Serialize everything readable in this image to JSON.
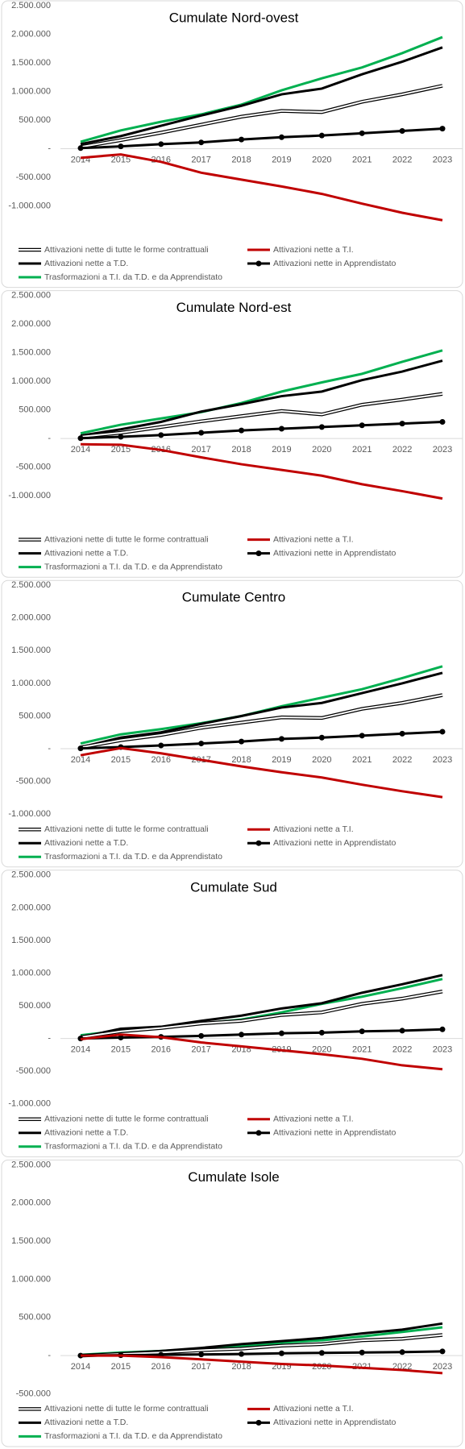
{
  "chart_data": [
    {
      "type": "line",
      "title": "Cumulate Nord-ovest",
      "categories": [
        "2014",
        "2015",
        "2016",
        "2017",
        "2018",
        "2019",
        "2020",
        "2021",
        "2022",
        "2023"
      ],
      "ylim": [
        -1500000,
        2500000
      ],
      "yticks": [
        {
          "value": 2500000,
          "label": "2.500.000"
        },
        {
          "value": 2000000,
          "label": "2.000.000"
        },
        {
          "value": 1500000,
          "label": "1.500.000"
        },
        {
          "value": 1000000,
          "label": "1.000.000"
        },
        {
          "value": 500000,
          "label": "500.000"
        },
        {
          "value": 0,
          "label": "-"
        },
        {
          "value": -500000,
          "label": "-500.000"
        },
        {
          "value": -1000000,
          "label": "-1.000.000"
        }
      ],
      "series": [
        {
          "name": "Attivazioni nette di tutte le forme contrattuali",
          "color": "#ffffff",
          "outline": true,
          "values": [
            30000,
            150000,
            280000,
            420000,
            560000,
            660000,
            640000,
            820000,
            950000,
            1100000
          ]
        },
        {
          "name": "Attivazioni nette a T.I.",
          "color": "#c00000",
          "values": [
            -160000,
            -100000,
            -230000,
            -420000,
            -540000,
            -660000,
            -790000,
            -960000,
            -1120000,
            -1250000
          ]
        },
        {
          "name": "Attivazioni nette a T.D.",
          "color": "#000000",
          "values": [
            80000,
            220000,
            400000,
            580000,
            750000,
            950000,
            1050000,
            1300000,
            1520000,
            1770000
          ]
        },
        {
          "name": "Attivazioni nette in Apprendistato",
          "color": "#000000",
          "markers": true,
          "values": [
            10000,
            40000,
            80000,
            110000,
            160000,
            200000,
            230000,
            270000,
            310000,
            350000
          ]
        },
        {
          "name": "Trasformazioni a T.I. da T.D. e da Apprendistato",
          "color": "#00b050",
          "values": [
            120000,
            320000,
            470000,
            600000,
            770000,
            1020000,
            1230000,
            1420000,
            1670000,
            1950000
          ]
        }
      ]
    },
    {
      "type": "line",
      "title": "Cumulate Nord-est",
      "categories": [
        "2014",
        "2015",
        "2016",
        "2017",
        "2018",
        "2019",
        "2020",
        "2021",
        "2022",
        "2023"
      ],
      "ylim": [
        -1500000,
        2500000
      ],
      "yticks": [
        {
          "value": 2500000,
          "label": "2.500.000"
        },
        {
          "value": 2000000,
          "label": "2.000.000"
        },
        {
          "value": 1500000,
          "label": "1.500.000"
        },
        {
          "value": 1000000,
          "label": "1.000.000"
        },
        {
          "value": 500000,
          "label": "500.000"
        },
        {
          "value": 0,
          "label": "-"
        },
        {
          "value": -500000,
          "label": "-500.000"
        },
        {
          "value": -1000000,
          "label": "-1.000.000"
        }
      ],
      "series": [
        {
          "name": "Attivazioni nette di tutte le forme contrattuali",
          "color": "#ffffff",
          "outline": true,
          "values": [
            30000,
            100000,
            200000,
            300000,
            390000,
            480000,
            420000,
            590000,
            680000,
            780000
          ]
        },
        {
          "name": "Attivazioni nette a T.I.",
          "color": "#c00000",
          "values": [
            -100000,
            -110000,
            -200000,
            -330000,
            -450000,
            -550000,
            -650000,
            -800000,
            -920000,
            -1050000
          ]
        },
        {
          "name": "Attivazioni nette a T.D.",
          "color": "#000000",
          "values": [
            50000,
            160000,
            290000,
            470000,
            600000,
            740000,
            820000,
            1020000,
            1170000,
            1360000
          ]
        },
        {
          "name": "Attivazioni nette in Apprendistato",
          "color": "#000000",
          "markers": true,
          "values": [
            5000,
            30000,
            60000,
            100000,
            140000,
            170000,
            200000,
            230000,
            260000,
            290000
          ]
        },
        {
          "name": "Trasformazioni a T.I. da T.D. e da Apprendistato",
          "color": "#00b050",
          "values": [
            90000,
            240000,
            350000,
            460000,
            620000,
            820000,
            980000,
            1130000,
            1340000,
            1540000
          ]
        }
      ]
    },
    {
      "type": "line",
      "title": "Cumulate Centro",
      "categories": [
        "2014",
        "2015",
        "2016",
        "2017",
        "2018",
        "2019",
        "2020",
        "2021",
        "2022",
        "2023"
      ],
      "ylim": [
        -1000000,
        2500000
      ],
      "yticks": [
        {
          "value": 2500000,
          "label": "2.500.000"
        },
        {
          "value": 2000000,
          "label": "2.000.000"
        },
        {
          "value": 1500000,
          "label": "1.500.000"
        },
        {
          "value": 1000000,
          "label": "1.000.000"
        },
        {
          "value": 500000,
          "label": "500.000"
        },
        {
          "value": 0,
          "label": "-"
        },
        {
          "value": -500000,
          "label": "-500.000"
        },
        {
          "value": -1000000,
          "label": "-1.000.000"
        }
      ],
      "series": [
        {
          "name": "Attivazioni nette di tutte le forme contrattuali",
          "color": "#ffffff",
          "outline": true,
          "values": [
            20000,
            130000,
            210000,
            320000,
            400000,
            480000,
            470000,
            610000,
            700000,
            820000
          ]
        },
        {
          "name": "Attivazioni nette a T.I.",
          "color": "#c00000",
          "values": [
            -100000,
            10000,
            -70000,
            -170000,
            -270000,
            -360000,
            -440000,
            -550000,
            -650000,
            -740000
          ]
        },
        {
          "name": "Attivazioni nette a T.D.",
          "color": "#000000",
          "values": [
            20000,
            170000,
            250000,
            380000,
            500000,
            630000,
            700000,
            850000,
            1000000,
            1160000
          ]
        },
        {
          "name": "Attivazioni nette in Apprendistato",
          "color": "#000000",
          "markers": true,
          "values": [
            5000,
            25000,
            50000,
            80000,
            110000,
            150000,
            170000,
            200000,
            230000,
            260000
          ]
        },
        {
          "name": "Trasformazioni a T.I. da T.D. e da Apprendistato",
          "color": "#00b050",
          "values": [
            80000,
            220000,
            300000,
            390000,
            500000,
            650000,
            780000,
            910000,
            1080000,
            1260000
          ]
        }
      ]
    },
    {
      "type": "line",
      "title": "Cumulate Sud",
      "categories": [
        "2014",
        "2015",
        "2016",
        "2017",
        "2018",
        "2019",
        "2020",
        "2021",
        "2022",
        "2023"
      ],
      "ylim": [
        -1000000,
        2500000
      ],
      "yticks": [
        {
          "value": 2500000,
          "label": "2.500.000"
        },
        {
          "value": 2000000,
          "label": "2.000.000"
        },
        {
          "value": 1500000,
          "label": "1.500.000"
        },
        {
          "value": 1000000,
          "label": "1.000.000"
        },
        {
          "value": 500000,
          "label": "500.000"
        },
        {
          "value": 0,
          "label": "-"
        },
        {
          "value": -500000,
          "label": "-500.000"
        },
        {
          "value": -1000000,
          "label": "-1.000.000"
        }
      ],
      "series": [
        {
          "name": "Attivazioni nette di tutte le forme contrattuali",
          "color": "#ffffff",
          "outline": true,
          "values": [
            20000,
            110000,
            160000,
            230000,
            270000,
            360000,
            400000,
            530000,
            610000,
            720000
          ]
        },
        {
          "name": "Attivazioni nette a T.I.",
          "color": "#c00000",
          "values": [
            -10000,
            60000,
            20000,
            -60000,
            -120000,
            -180000,
            -240000,
            -310000,
            -410000,
            -470000
          ]
        },
        {
          "name": "Attivazioni nette a T.D.",
          "color": "#000000",
          "values": [
            20000,
            150000,
            180000,
            270000,
            350000,
            460000,
            540000,
            700000,
            830000,
            970000
          ]
        },
        {
          "name": "Attivazioni nette in Apprendistato",
          "color": "#000000",
          "markers": true,
          "values": [
            0,
            15000,
            25000,
            40000,
            60000,
            80000,
            90000,
            110000,
            120000,
            140000
          ]
        },
        {
          "name": "Trasformazioni a T.I. da T.D. e da Apprendistato",
          "color": "#00b050",
          "values": [
            50000,
            120000,
            170000,
            230000,
            290000,
            400000,
            530000,
            640000,
            770000,
            910000
          ]
        }
      ]
    },
    {
      "type": "line",
      "title": "Cumulate  Isole",
      "categories": [
        "2014",
        "2015",
        "2016",
        "2017",
        "2018",
        "2019",
        "2020",
        "2021",
        "2022",
        "2023"
      ],
      "ylim": [
        -500000,
        2500000
      ],
      "yticks": [
        {
          "value": 2500000,
          "label": "2.500.000"
        },
        {
          "value": 2000000,
          "label": "2.000.000"
        },
        {
          "value": 1500000,
          "label": "1.500.000"
        },
        {
          "value": 1000000,
          "label": "1.000.000"
        },
        {
          "value": 500000,
          "label": "500.000"
        },
        {
          "value": 0,
          "label": "-"
        },
        {
          "value": -500000,
          "label": "-500.000"
        }
      ],
      "series": [
        {
          "name": "Attivazioni nette di tutte le forme contrattuali",
          "color": "#ffffff",
          "outline": true,
          "values": [
            0,
            20000,
            40000,
            70000,
            90000,
            130000,
            150000,
            200000,
            220000,
            270000
          ]
        },
        {
          "name": "Attivazioni nette a T.I.",
          "color": "#c00000",
          "values": [
            0,
            0,
            -20000,
            -50000,
            -80000,
            -110000,
            -130000,
            -160000,
            -190000,
            -230000
          ]
        },
        {
          "name": "Attivazioni nette a T.D.",
          "color": "#000000",
          "values": [
            0,
            30000,
            60000,
            100000,
            150000,
            190000,
            230000,
            290000,
            340000,
            420000
          ]
        },
        {
          "name": "Attivazioni nette in Apprendistato",
          "color": "#000000",
          "markers": true,
          "values": [
            0,
            5000,
            10000,
            15000,
            20000,
            30000,
            35000,
            40000,
            45000,
            55000
          ]
        },
        {
          "name": "Trasformazioni a T.I. da T.D. e da Apprendistato",
          "color": "#00b050",
          "values": [
            10000,
            40000,
            60000,
            90000,
            120000,
            170000,
            200000,
            250000,
            310000,
            370000
          ]
        }
      ]
    }
  ]
}
